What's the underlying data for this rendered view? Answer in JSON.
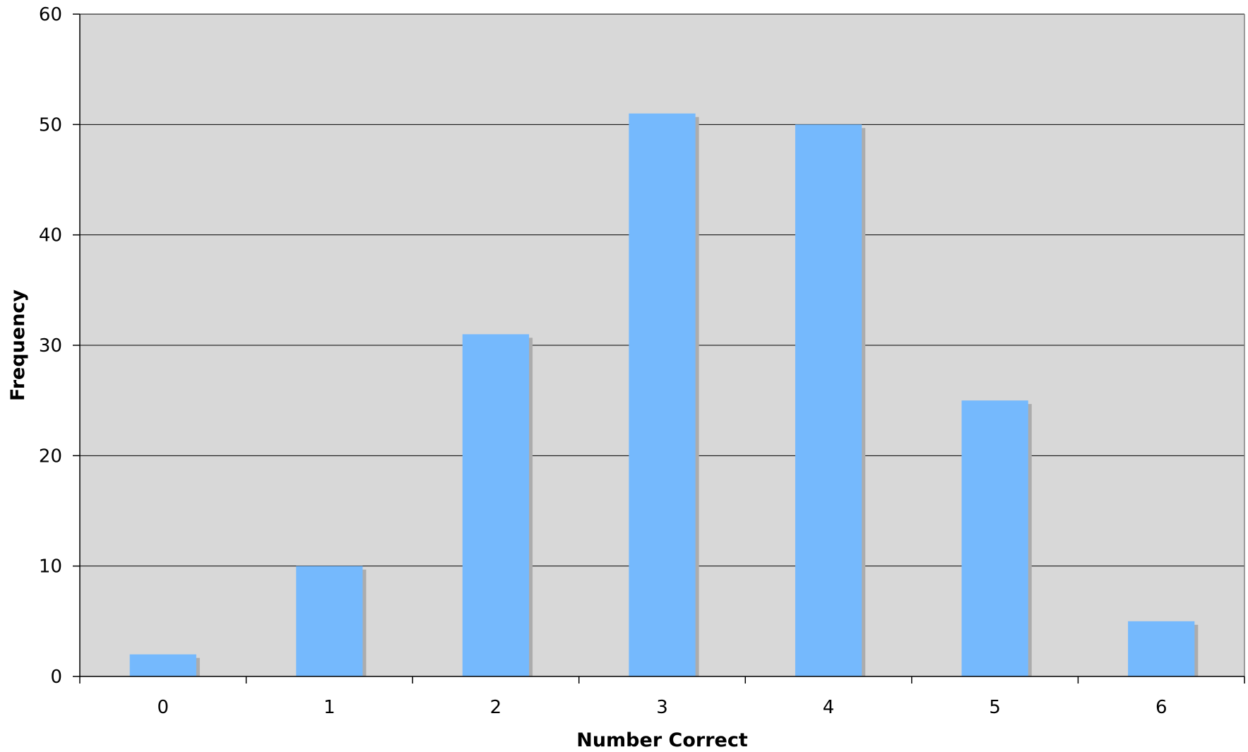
{
  "chart_data": {
    "type": "bar",
    "categories": [
      "0",
      "1",
      "2",
      "3",
      "4",
      "5",
      "6"
    ],
    "values": [
      2,
      10,
      31,
      51,
      50,
      25,
      5
    ],
    "xlabel": "Number Correct",
    "ylabel": "Frequency",
    "ylim": [
      0,
      60
    ],
    "yticks": [
      0,
      10,
      20,
      30,
      40,
      50,
      60
    ],
    "grid": true,
    "legend": "none",
    "colors": {
      "bar": "#75b9fd",
      "bar_shadow": "#acacac",
      "plot_background": "#d8d8d8",
      "gridline": "#000000",
      "axis": "#000000"
    }
  }
}
